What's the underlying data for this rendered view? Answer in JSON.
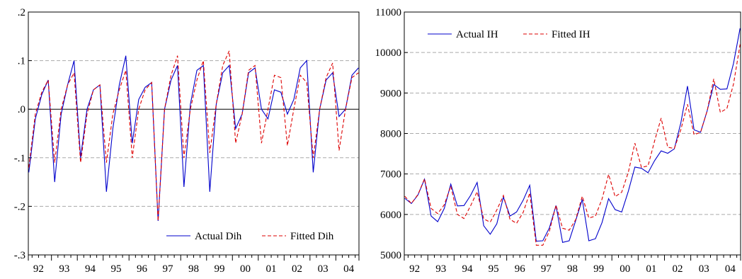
{
  "colors": {
    "actual": "#0000cc",
    "fitted": "#dd0000",
    "grid": "#aaaaaa",
    "axis": "#000000"
  },
  "chart_data": [
    {
      "type": "line",
      "x_tick_labels": [
        "92",
        "93",
        "94",
        "95",
        "96",
        "97",
        "98",
        "99",
        "00",
        "01",
        "02",
        "03",
        "04"
      ],
      "y_tick_labels": [
        ".2",
        ".1",
        ".0",
        "-.1",
        "-.2",
        "-.3"
      ],
      "y_ticks": [
        0.2,
        0.1,
        0.0,
        -0.1,
        -0.2,
        -0.3
      ],
      "ylim": [
        -0.3,
        0.2
      ],
      "x_start": 1992.0,
      "x_step": 0.25,
      "grid": true,
      "zero_line": true,
      "legend_position": "bottom-right",
      "series": [
        {
          "name": "Actual Dih",
          "dash": "solid",
          "values": [
            -0.13,
            -0.02,
            0.03,
            0.06,
            -0.15,
            -0.01,
            0.05,
            0.1,
            -0.1,
            0.0,
            0.04,
            0.05,
            -0.17,
            -0.04,
            0.05,
            0.11,
            -0.07,
            0.02,
            0.045,
            0.055,
            -0.23,
            0.0,
            0.06,
            0.09,
            -0.16,
            0.01,
            0.08,
            0.09,
            -0.17,
            0.01,
            0.075,
            0.09,
            -0.04,
            -0.01,
            0.075,
            0.085,
            0.0,
            -0.02,
            0.04,
            0.035,
            -0.01,
            0.02,
            0.085,
            0.1,
            -0.13,
            0.0,
            0.06,
            0.075,
            -0.015,
            0.0,
            0.07,
            0.085
          ]
        },
        {
          "name": "Fitted Dih",
          "dash": "dashed",
          "values": [
            -0.12,
            -0.01,
            0.035,
            0.06,
            -0.11,
            0.0,
            0.05,
            0.075,
            -0.11,
            -0.01,
            0.04,
            0.05,
            -0.11,
            -0.01,
            0.04,
            0.08,
            -0.1,
            0.0,
            0.04,
            0.055,
            -0.23,
            0.0,
            0.07,
            0.11,
            -0.1,
            0.0,
            0.06,
            0.1,
            -0.09,
            0.01,
            0.09,
            0.12,
            -0.07,
            -0.01,
            0.08,
            0.09,
            -0.07,
            0.0,
            0.07,
            0.065,
            -0.075,
            0.0,
            0.07,
            0.055,
            -0.1,
            0.0,
            0.065,
            0.095,
            -0.085,
            0.0,
            0.065,
            0.075
          ]
        }
      ]
    },
    {
      "type": "line",
      "x_tick_labels": [
        "92",
        "93",
        "94",
        "95",
        "96",
        "97",
        "98",
        "99",
        "00",
        "01",
        "02",
        "03",
        "04"
      ],
      "y_tick_labels": [
        "11000",
        "10000",
        "9000",
        "8000",
        "7000",
        "6000",
        "5000"
      ],
      "y_ticks": [
        11000,
        10000,
        9000,
        8000,
        7000,
        6000,
        5000
      ],
      "ylim": [
        5000,
        11000
      ],
      "x_start": 1992.0,
      "x_step": 0.25,
      "grid": true,
      "zero_line": false,
      "legend_position": "top-left",
      "series": [
        {
          "name": "Actual IH",
          "dash": "solid",
          "values": [
            6400,
            6270,
            6480,
            6870,
            5960,
            5820,
            6150,
            6750,
            6210,
            6220,
            6470,
            6790,
            5720,
            5510,
            5770,
            6430,
            5960,
            6060,
            6350,
            6720,
            5340,
            5350,
            5670,
            6220,
            5310,
            5350,
            5850,
            6370,
            5350,
            5400,
            5800,
            6390,
            6120,
            6060,
            6570,
            7170,
            7140,
            7030,
            7330,
            7570,
            7510,
            7620,
            8270,
            9170,
            8090,
            8030,
            8560,
            9210,
            9090,
            9100,
            9730,
            10600
          ]
        },
        {
          "name": "Fitted IH",
          "dash": "dashed",
          "values": [
            6450,
            6270,
            6490,
            6880,
            6150,
            6020,
            6240,
            6700,
            6000,
            5900,
            6210,
            6560,
            5890,
            5810,
            6110,
            6470,
            5880,
            5780,
            6050,
            6530,
            5240,
            5240,
            5590,
            6230,
            5660,
            5610,
            5870,
            6450,
            5910,
            5960,
            6380,
            6990,
            6440,
            6550,
            7040,
            7760,
            7160,
            7200,
            7820,
            8380,
            7660,
            7630,
            8100,
            8720,
            7970,
            8030,
            8560,
            9350,
            8520,
            8620,
            9220,
            10200
          ]
        }
      ]
    }
  ]
}
